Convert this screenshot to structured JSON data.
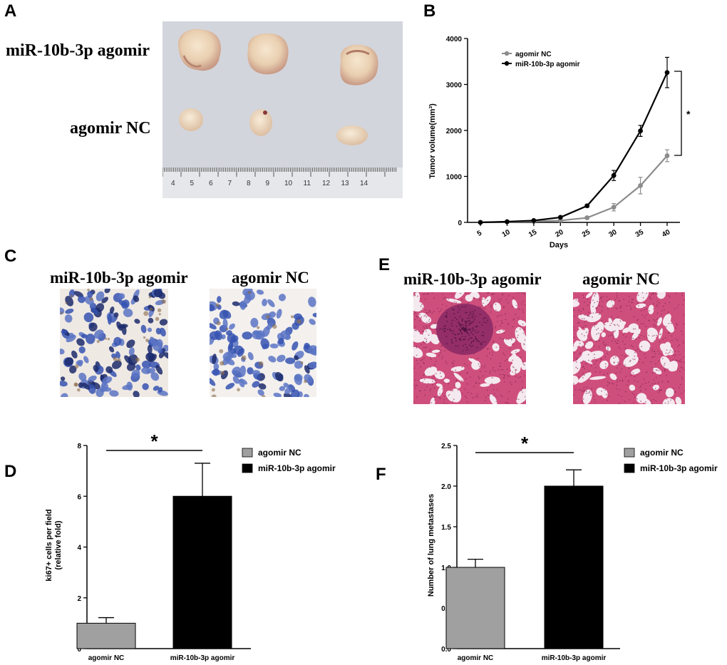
{
  "panels": {
    "A": {
      "letter": "A",
      "row_labels": [
        "miR-10b-3p agomir",
        "agomir NC"
      ],
      "ruler_ticks": [
        "4",
        "5",
        "6",
        "7",
        "8",
        "9",
        "10",
        "11",
        "12",
        "13",
        "14"
      ]
    },
    "B": {
      "letter": "B"
    },
    "C": {
      "letter": "C",
      "labels": [
        "miR-10b-3p agomir",
        "agomir NC"
      ]
    },
    "D": {
      "letter": "D"
    },
    "E": {
      "letter": "E",
      "labels": [
        "miR-10b-3p agomir",
        "agomir NC"
      ]
    },
    "F": {
      "letter": "F"
    }
  },
  "colors": {
    "agomir_nc": "#8c8c8c",
    "agomir_nc_bar": "#a0a0a0",
    "mir_agomir": "#000000",
    "ihc_nuclei": "#2a3f9a",
    "he_stain": "#c0386a"
  },
  "chart_data": [
    {
      "panel": "B",
      "type": "line",
      "xlabel": "Days",
      "ylabel": "Tumor volume(mm³)",
      "x": [
        5,
        10,
        15,
        20,
        25,
        30,
        35,
        40
      ],
      "xlim": [
        5,
        40
      ],
      "ylim": [
        0,
        4000
      ],
      "yticks": [
        0,
        1000,
        2000,
        3000,
        4000
      ],
      "legend_position": "top-left",
      "series": [
        {
          "name": "agomir NC",
          "color": "#8c8c8c",
          "values": [
            0,
            10,
            20,
            40,
            100,
            330,
            800,
            1450
          ],
          "errors": [
            0,
            5,
            10,
            15,
            30,
            80,
            180,
            130
          ]
        },
        {
          "name": "miR-10b-3p agomir",
          "color": "#000000",
          "values": [
            0,
            15,
            40,
            110,
            360,
            1020,
            1990,
            3260
          ],
          "errors": [
            0,
            5,
            10,
            20,
            30,
            110,
            120,
            330
          ]
        }
      ],
      "annotation": "*"
    },
    {
      "panel": "D",
      "type": "bar",
      "ylabel": "ki67+ cells per field\n(relative fold)",
      "categories": [
        "agomir NC",
        "miR-10b-3p agomir"
      ],
      "values": [
        1.0,
        6.0
      ],
      "errors": [
        0.22,
        1.3
      ],
      "ylim": [
        0,
        8
      ],
      "yticks": [
        0,
        2,
        4,
        6,
        8
      ],
      "legend": [
        "agomir NC",
        "miR-10b-3p agomir"
      ],
      "legend_position": "right",
      "annotation": "*"
    },
    {
      "panel": "F",
      "type": "bar",
      "ylabel": "Number of lung metastases",
      "categories": [
        "agomir NC",
        "miR-10b-3p agomir"
      ],
      "values": [
        1.0,
        2.0
      ],
      "errors": [
        0.1,
        0.2
      ],
      "ylim": [
        0,
        2.5
      ],
      "yticks": [
        "0.0",
        "0.5",
        "1.0",
        "1.5",
        "2.0",
        "2.5"
      ],
      "legend": [
        "agomir NC",
        "miR-10b-3p agomir"
      ],
      "legend_position": "right",
      "annotation": "*"
    }
  ]
}
